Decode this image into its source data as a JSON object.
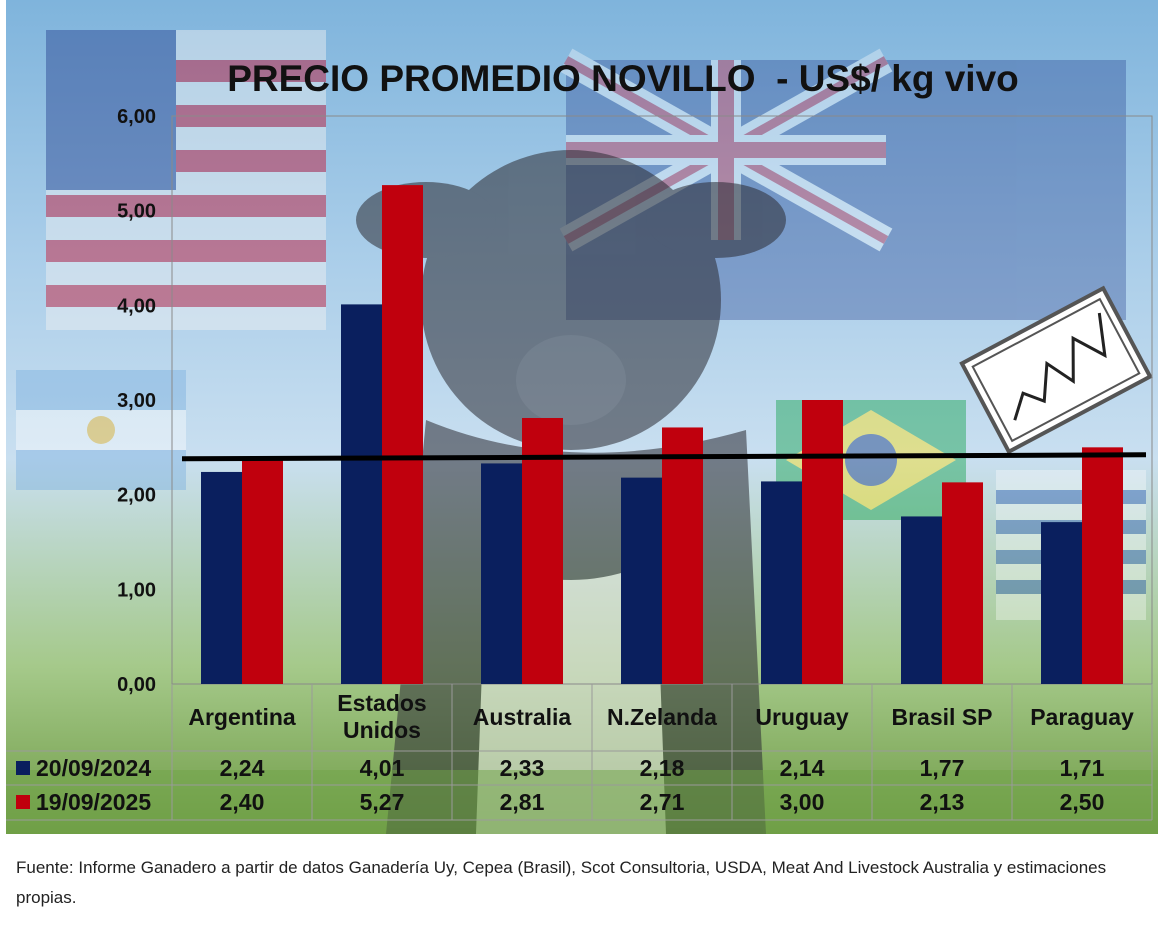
{
  "chart_data": {
    "type": "bar",
    "title": "PRECIO PROMEDIO NOVILLO  - US$/ kg vivo",
    "categories": [
      "Argentina",
      "Estados\nUnidos",
      "Australia",
      "N.Zelanda",
      "Uruguay",
      "Brasil SP",
      "Paraguay"
    ],
    "series": [
      {
        "name": "20/09/2024",
        "color": "#0a1f5e",
        "values": [
          2.24,
          4.01,
          2.33,
          2.18,
          2.14,
          1.77,
          1.71
        ]
      },
      {
        "name": "19/09/2025",
        "color": "#c0000d",
        "values": [
          2.4,
          5.27,
          2.81,
          2.71,
          3.0,
          2.13,
          2.5
        ]
      }
    ],
    "table": {
      "rows": [
        {
          "label": "20/09/2024",
          "cells": [
            "2,24",
            "4,01",
            "2,33",
            "2,18",
            "2,14",
            "1,77",
            "1,71"
          ]
        },
        {
          "label": "19/09/2025",
          "cells": [
            "2,40",
            "5,27",
            "2,81",
            "2,71",
            "3,00",
            "2,13",
            "2,50"
          ]
        }
      ]
    },
    "ylim": [
      0,
      6
    ],
    "yticks": [
      "0,00",
      "1,00",
      "2,00",
      "3,00",
      "4,00",
      "5,00",
      "6,00"
    ],
    "reference_line": {
      "value": 2.4,
      "color": "#000000"
    },
    "grid": false,
    "legend": "table-left"
  },
  "footnote": "Fuente: Informe Ganadero a partir de datos Ganadería Uy, Cepea (Brasil), Scot Consultoria, USDA, Meat And Livestock Australia y estimaciones propias."
}
